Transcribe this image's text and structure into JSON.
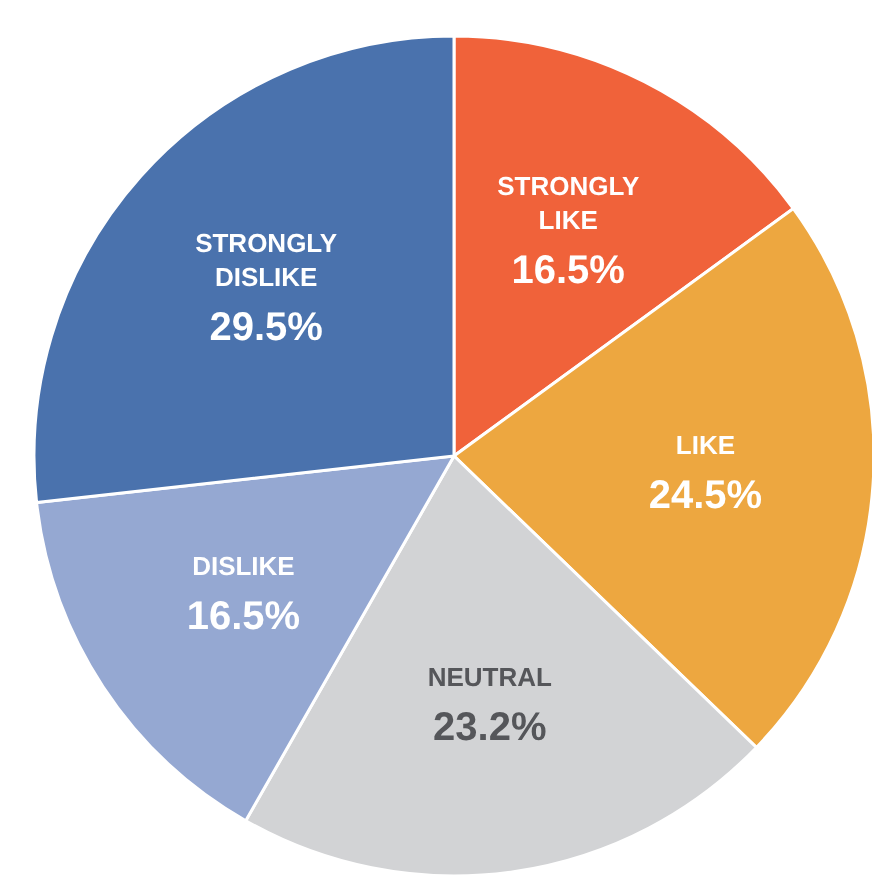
{
  "chart_data": {
    "type": "pie",
    "categories": [
      "STRONGLY LIKE",
      "LIKE",
      "NEUTRAL",
      "DISLIKE",
      "STRONGLY DISLIKE"
    ],
    "values": [
      16.5,
      24.5,
      23.2,
      16.5,
      29.5
    ],
    "value_labels": [
      "16.5%",
      "24.5%",
      "23.2%",
      "16.5%",
      "29.5%"
    ],
    "colors": [
      "#f0623a",
      "#eda740",
      "#d2d3d5",
      "#95a8d2",
      "#4a72ad"
    ],
    "legend": false
  }
}
